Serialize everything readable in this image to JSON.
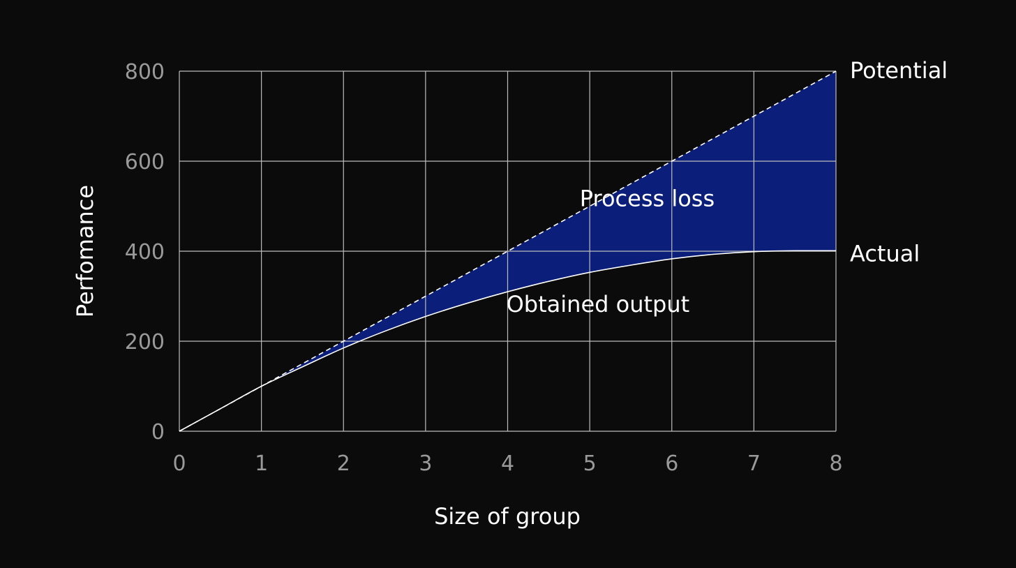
{
  "chart_data": {
    "type": "area",
    "xlabel": "Size of group",
    "ylabel": "Perfomance",
    "xlim": [
      0,
      8
    ],
    "ylim": [
      0,
      800
    ],
    "x_ticks": [
      0,
      1,
      2,
      3,
      4,
      5,
      6,
      7,
      8
    ],
    "y_ticks": [
      0,
      200,
      400,
      600,
      800
    ],
    "grid": true,
    "series": [
      {
        "name": "Potential",
        "style": "dashed",
        "x": [
          0,
          1,
          2,
          3,
          4,
          5,
          6,
          7,
          8
        ],
        "values": [
          0,
          100,
          200,
          300,
          400,
          500,
          600,
          700,
          800
        ]
      },
      {
        "name": "Actual",
        "style": "solid",
        "x": [
          0,
          0.5,
          1,
          1.5,
          2,
          2.5,
          3,
          3.5,
          4,
          4.5,
          5,
          5.5,
          6,
          6.5,
          7,
          7.5,
          8
        ],
        "values": [
          0,
          50,
          100,
          143,
          185,
          222,
          255,
          284,
          310,
          333,
          353,
          369,
          383,
          393,
          399,
          401,
          401
        ]
      }
    ],
    "filled_region": {
      "between": [
        "Potential",
        "Actual"
      ],
      "label": "Process loss"
    },
    "annotations": [
      {
        "text": "Process loss",
        "x": 5.7,
        "y": 500
      },
      {
        "text": "Obtained output",
        "x": 5.1,
        "y": 265
      }
    ],
    "colors": {
      "background": "#0b0b0b",
      "fill": "#0b1f7a",
      "grid": "#bdbdbd",
      "lines": "#ffffff",
      "tick_text": "#9a9a9a",
      "text": "#ffffff"
    }
  }
}
